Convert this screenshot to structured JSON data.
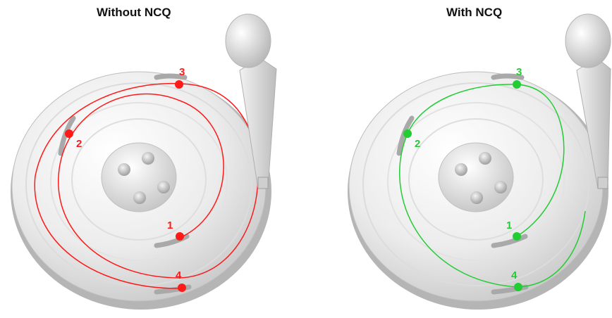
{
  "panels": [
    {
      "title": "Without NCQ",
      "path_color": "#ff1a1a",
      "requests": [
        {
          "label": "1"
        },
        {
          "label": "2"
        },
        {
          "label": "3"
        },
        {
          "label": "4"
        }
      ]
    },
    {
      "title": "With NCQ",
      "path_color": "#22cc33",
      "requests": [
        {
          "label": "1"
        },
        {
          "label": "2"
        },
        {
          "label": "3"
        },
        {
          "label": "4"
        }
      ]
    }
  ],
  "colors": {
    "platter": "#e6e6e6",
    "platter_edge": "#bdbdbd",
    "hub": "#d8d8d8",
    "arm": "#dcdcdc",
    "track_mark": "#a9a9a9"
  }
}
